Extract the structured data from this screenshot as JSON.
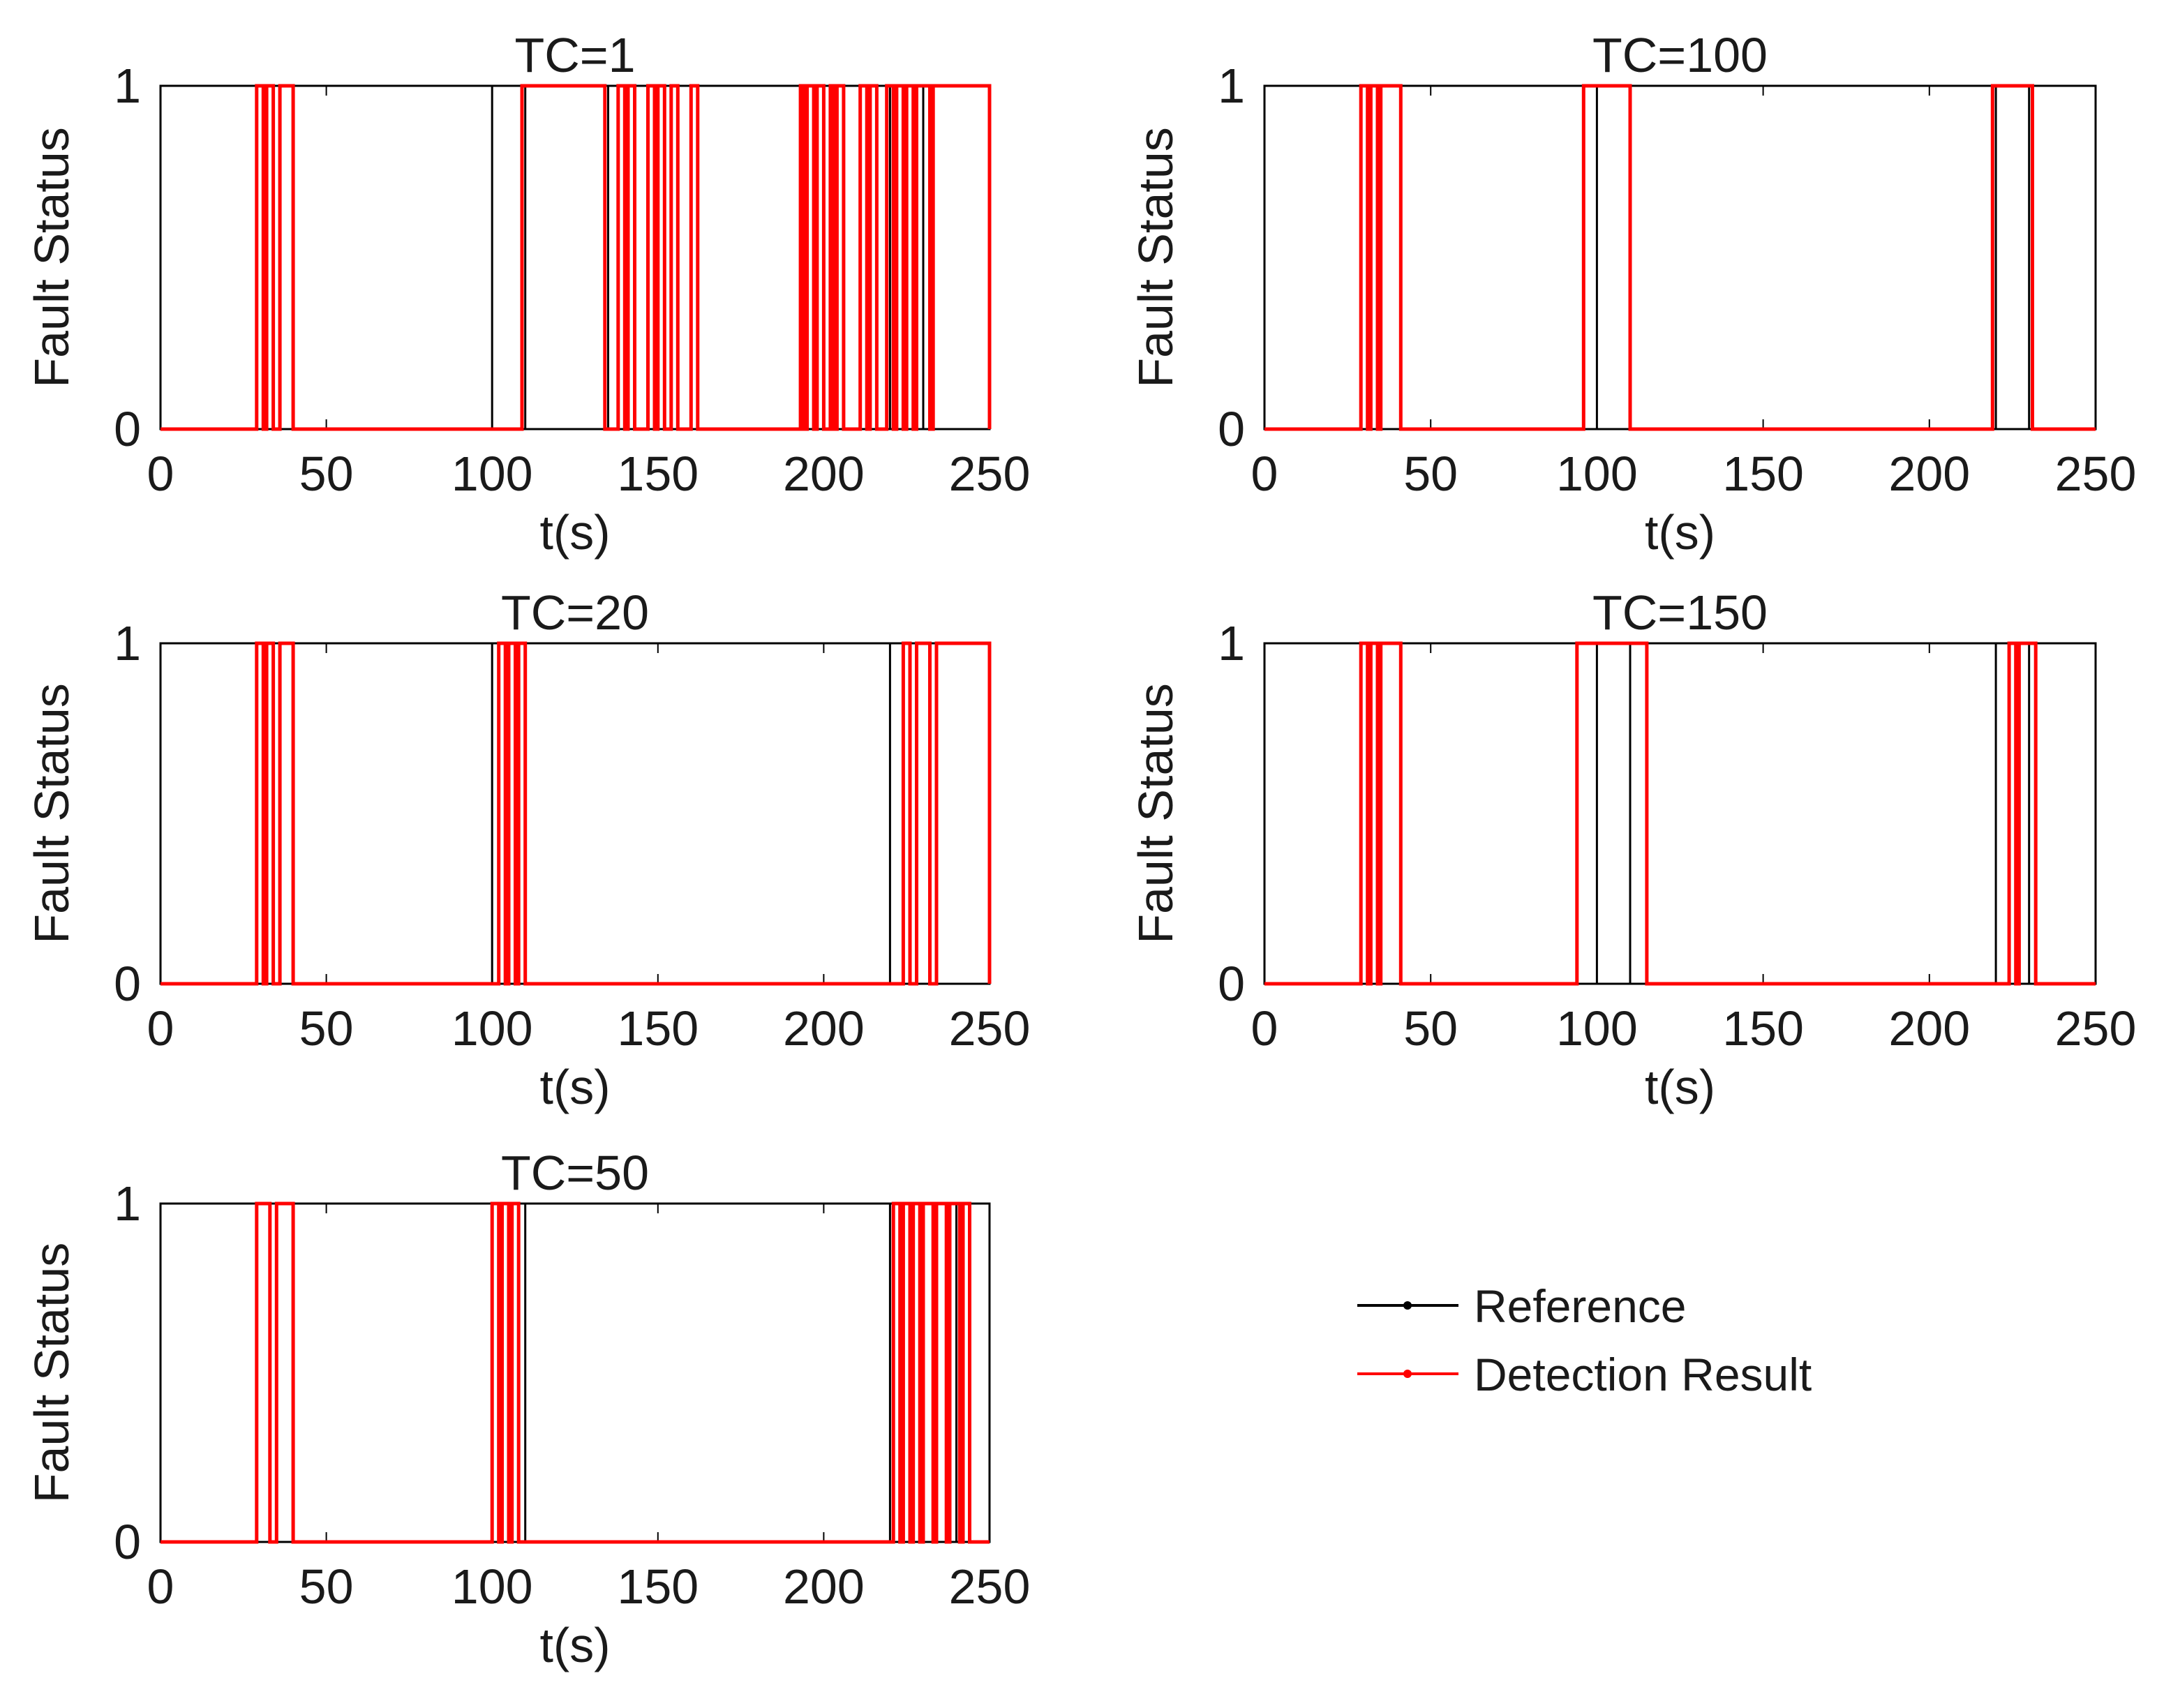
{
  "chart_data": [
    {
      "type": "line",
      "title": "TC=1",
      "xlabel": "t(s)",
      "ylabel": "Fault Status",
      "xlim": [
        0,
        250
      ],
      "ylim": [
        0,
        1
      ],
      "xticks": [
        "0",
        "50",
        "100",
        "150",
        "200",
        "250"
      ],
      "yticks": [
        "0",
        "1"
      ],
      "series": [
        {
          "name": "Reference",
          "color": "#000000",
          "intervals": [
            [
              100,
              110
            ],
            [
              135,
              140
            ],
            [
              220,
              230
            ]
          ]
        },
        {
          "name": "Detection Result",
          "color": "#ff0000",
          "intervals": [
            [
              29,
              31
            ],
            [
              32,
              34
            ],
            [
              36,
              40
            ],
            [
              109,
              134
            ],
            [
              138,
              140
            ],
            [
              141,
              143
            ],
            [
              147,
              149
            ],
            [
              150,
              152
            ],
            [
              154,
              156
            ],
            [
              160,
              162
            ],
            [
              193,
              194
            ],
            [
              195,
              197
            ],
            [
              198,
              200
            ],
            [
              202,
              203
            ],
            [
              204,
              206
            ],
            [
              211,
              213
            ],
            [
              214,
              216
            ],
            [
              219,
              221
            ],
            [
              222,
              224
            ],
            [
              225,
              227
            ],
            [
              228,
              232
            ],
            [
              233,
              251
            ]
          ]
        }
      ]
    },
    {
      "type": "line",
      "title": "TC=100",
      "xlabel": "t(s)",
      "ylabel": "Fault Status",
      "xlim": [
        0,
        250
      ],
      "ylim": [
        0,
        1
      ],
      "xticks": [
        "0",
        "50",
        "100",
        "150",
        "200",
        "250"
      ],
      "yticks": [
        "0",
        "1"
      ],
      "series": [
        {
          "name": "Reference",
          "color": "#000000",
          "intervals": [
            [
              100,
              110
            ],
            [
              220,
              230
            ]
          ]
        },
        {
          "name": "Detection Result",
          "color": "#ff0000",
          "intervals": [
            [
              29,
              31
            ],
            [
              32,
              34
            ],
            [
              35,
              41
            ],
            [
              96,
              110
            ],
            [
              219,
              231
            ]
          ]
        }
      ]
    },
    {
      "type": "line",
      "title": "TC=20",
      "xlabel": "t(s)",
      "ylabel": "Fault Status",
      "xlim": [
        0,
        250
      ],
      "ylim": [
        0,
        1
      ],
      "xticks": [
        "0",
        "50",
        "100",
        "150",
        "200",
        "250"
      ],
      "yticks": [
        "0",
        "1"
      ],
      "series": [
        {
          "name": "Reference",
          "color": "#000000",
          "intervals": [
            [
              100,
              110
            ],
            [
              220,
              250
            ]
          ]
        },
        {
          "name": "Detection Result",
          "color": "#ff0000",
          "intervals": [
            [
              29,
              31
            ],
            [
              32,
              34
            ],
            [
              36,
              40
            ],
            [
              102,
              104
            ],
            [
              105,
              107
            ],
            [
              108,
              110
            ],
            [
              224,
              226
            ],
            [
              228,
              232
            ],
            [
              234,
              251
            ]
          ]
        }
      ]
    },
    {
      "type": "line",
      "title": "TC=150",
      "xlabel": "t(s)",
      "ylabel": "Fault Status",
      "xlim": [
        0,
        250
      ],
      "ylim": [
        0,
        1
      ],
      "xticks": [
        "0",
        "50",
        "100",
        "150",
        "200",
        "250"
      ],
      "yticks": [
        "0",
        "1"
      ],
      "series": [
        {
          "name": "Reference",
          "color": "#000000",
          "intervals": [
            [
              100,
              110
            ],
            [
              220,
              230
            ]
          ]
        },
        {
          "name": "Detection Result",
          "color": "#ff0000",
          "intervals": [
            [
              29,
              31
            ],
            [
              32,
              34
            ],
            [
              35,
              41
            ],
            [
              94,
              115
            ],
            [
              224,
              226
            ],
            [
              227,
              232
            ]
          ]
        }
      ]
    },
    {
      "type": "line",
      "title": "TC=50",
      "xlabel": "t(s)",
      "ylabel": "Fault Status",
      "xlim": [
        0,
        250
      ],
      "ylim": [
        0,
        1
      ],
      "xticks": [
        "0",
        "50",
        "100",
        "150",
        "200",
        "250"
      ],
      "yticks": [
        "0",
        "1"
      ],
      "series": [
        {
          "name": "Reference",
          "color": "#000000",
          "intervals": [
            [
              100,
              110
            ],
            [
              220,
              240
            ]
          ]
        },
        {
          "name": "Detection Result",
          "color": "#ff0000",
          "intervals": [
            [
              29,
              33
            ],
            [
              35,
              40
            ],
            [
              100,
              102
            ],
            [
              103,
              105
            ],
            [
              106,
              108
            ],
            [
              221,
              223
            ],
            [
              224,
              226
            ],
            [
              227,
              229
            ],
            [
              230,
              233
            ],
            [
              234,
              237
            ],
            [
              238,
              241
            ],
            [
              242,
              244
            ]
          ]
        }
      ]
    }
  ],
  "legend": {
    "entries": [
      {
        "label": "Reference",
        "color": "#000000"
      },
      {
        "label": "Detection Result",
        "color": "#ff0000"
      }
    ]
  }
}
